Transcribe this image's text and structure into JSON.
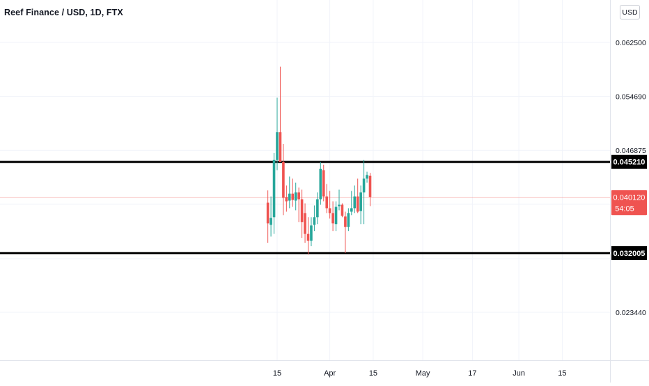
{
  "header": {
    "title": "Reef Finance / USD, 1D, FTX"
  },
  "toolbar": {
    "currency_label": "USD"
  },
  "countdown": "54:05",
  "colors": {
    "up": "#26a69a",
    "down": "#ef5350",
    "level_line": "#000000",
    "grid": "#f0f3fa",
    "axis_text": "#131722"
  },
  "chart_data": {
    "type": "candlestick",
    "symbol": "Reef Finance / USD",
    "interval": "1D",
    "exchange": "FTX",
    "y_axis": {
      "ticks": [
        0.0625,
        0.05469,
        0.046875,
        0.02344
      ],
      "tick_labels": [
        "0.062500",
        "0.054690",
        "0.046875",
        "0.023440"
      ],
      "range": [
        0.0158,
        0.068
      ]
    },
    "x_axis": {
      "tick_labels": [
        "15",
        "Apr",
        "15",
        "May",
        "17",
        "Jun",
        "15"
      ],
      "tick_dates": [
        "2021-03-15",
        "2021-04-01",
        "2021-04-15",
        "2021-05-01",
        "2021-05-17",
        "2021-06-01",
        "2021-06-15"
      ]
    },
    "last_price": {
      "value": 0.04012,
      "label": "0.040120"
    },
    "horizontal_levels": [
      {
        "value": 0.04521,
        "label": "0.045210"
      },
      {
        "value": 0.032005,
        "label": "0.032005"
      }
    ],
    "candles": [
      {
        "date": "2021-03-12",
        "open": 0.0393,
        "high": 0.0411,
        "low": 0.0335,
        "close": 0.0363
      },
      {
        "date": "2021-03-13",
        "open": 0.0361,
        "high": 0.0402,
        "low": 0.0344,
        "close": 0.0371
      },
      {
        "date": "2021-03-14",
        "open": 0.0372,
        "high": 0.0465,
        "low": 0.0348,
        "close": 0.0455
      },
      {
        "date": "2021-03-15",
        "open": 0.0455,
        "high": 0.0545,
        "low": 0.044,
        "close": 0.0495
      },
      {
        "date": "2021-03-16",
        "open": 0.0495,
        "high": 0.059,
        "low": 0.0455,
        "close": 0.0452
      },
      {
        "date": "2021-03-17",
        "open": 0.0452,
        "high": 0.0478,
        "low": 0.0375,
        "close": 0.04
      },
      {
        "date": "2021-03-18",
        "open": 0.0401,
        "high": 0.0418,
        "low": 0.038,
        "close": 0.0395
      },
      {
        "date": "2021-03-19",
        "open": 0.0396,
        "high": 0.0431,
        "low": 0.0385,
        "close": 0.0406
      },
      {
        "date": "2021-03-20",
        "open": 0.0406,
        "high": 0.0428,
        "low": 0.0387,
        "close": 0.0397
      },
      {
        "date": "2021-03-21",
        "open": 0.0396,
        "high": 0.0422,
        "low": 0.0382,
        "close": 0.0408
      },
      {
        "date": "2021-03-22",
        "open": 0.0408,
        "high": 0.0415,
        "low": 0.0365,
        "close": 0.0398
      },
      {
        "date": "2021-03-23",
        "open": 0.0398,
        "high": 0.0412,
        "low": 0.0342,
        "close": 0.0365
      },
      {
        "date": "2021-03-24",
        "open": 0.0378,
        "high": 0.0392,
        "low": 0.0335,
        "close": 0.0348
      },
      {
        "date": "2021-03-25",
        "open": 0.0348,
        "high": 0.0372,
        "low": 0.0318,
        "close": 0.0338
      },
      {
        "date": "2021-03-26",
        "open": 0.0338,
        "high": 0.0372,
        "low": 0.033,
        "close": 0.036
      },
      {
        "date": "2021-03-27",
        "open": 0.0361,
        "high": 0.0389,
        "low": 0.0352,
        "close": 0.0372
      },
      {
        "date": "2021-03-28",
        "open": 0.0372,
        "high": 0.0408,
        "low": 0.0362,
        "close": 0.0398
      },
      {
        "date": "2021-03-29",
        "open": 0.0398,
        "high": 0.0452,
        "low": 0.039,
        "close": 0.0442
      },
      {
        "date": "2021-03-30",
        "open": 0.044,
        "high": 0.0448,
        "low": 0.0395,
        "close": 0.0402
      },
      {
        "date": "2021-03-31",
        "open": 0.0402,
        "high": 0.042,
        "low": 0.0378,
        "close": 0.0385
      },
      {
        "date": "2021-04-01",
        "open": 0.0385,
        "high": 0.041,
        "low": 0.037,
        "close": 0.0378
      },
      {
        "date": "2021-04-02",
        "open": 0.0378,
        "high": 0.0395,
        "low": 0.0352,
        "close": 0.0363
      },
      {
        "date": "2021-04-03",
        "open": 0.0362,
        "high": 0.0395,
        "low": 0.0352,
        "close": 0.0387
      },
      {
        "date": "2021-04-04",
        "open": 0.0388,
        "high": 0.0412,
        "low": 0.0382,
        "close": 0.039
      },
      {
        "date": "2021-04-05",
        "open": 0.039,
        "high": 0.0392,
        "low": 0.0372,
        "close": 0.0374
      },
      {
        "date": "2021-04-06",
        "open": 0.0373,
        "high": 0.038,
        "low": 0.032,
        "close": 0.0358
      },
      {
        "date": "2021-04-07",
        "open": 0.0358,
        "high": 0.0385,
        "low": 0.0352,
        "close": 0.0378
      },
      {
        "date": "2021-04-08",
        "open": 0.038,
        "high": 0.041,
        "low": 0.0375,
        "close": 0.0385
      },
      {
        "date": "2021-04-09",
        "open": 0.0385,
        "high": 0.0418,
        "low": 0.0378,
        "close": 0.0402
      },
      {
        "date": "2021-04-10",
        "open": 0.0402,
        "high": 0.0428,
        "low": 0.0378,
        "close": 0.038
      },
      {
        "date": "2021-04-11",
        "open": 0.0381,
        "high": 0.0418,
        "low": 0.0362,
        "close": 0.0408
      },
      {
        "date": "2021-04-12",
        "open": 0.0408,
        "high": 0.0455,
        "low": 0.0362,
        "close": 0.0428
      },
      {
        "date": "2021-04-13",
        "open": 0.0428,
        "high": 0.0438,
        "low": 0.0422,
        "close": 0.0433
      },
      {
        "date": "2021-04-14",
        "open": 0.0432,
        "high": 0.0436,
        "low": 0.0388,
        "close": 0.0401
      }
    ]
  }
}
